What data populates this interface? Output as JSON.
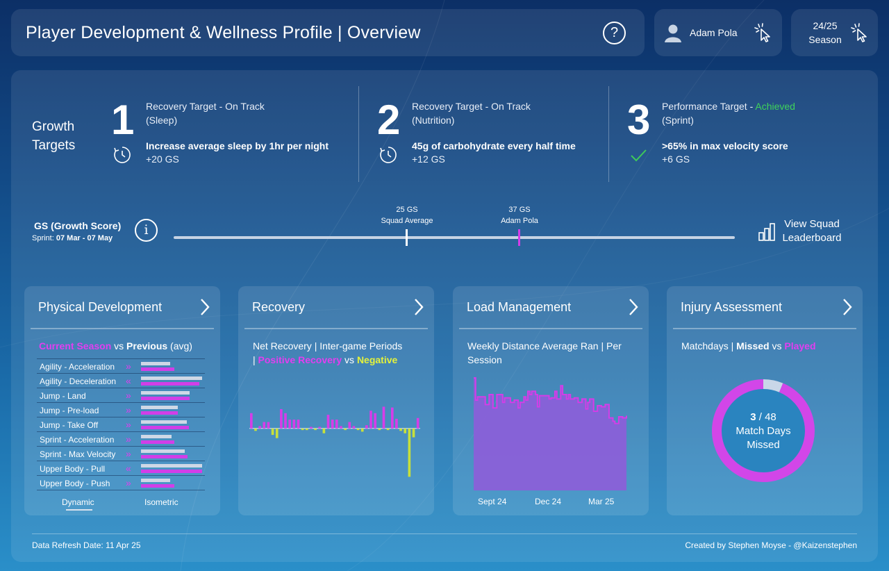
{
  "header": {
    "title": "Player Development & Wellness Profile | Overview",
    "help_icon": "?",
    "user_name": "Adam Pola",
    "season_line1": "24/25",
    "season_line2": "Season"
  },
  "growth": {
    "label_line1": "Growth",
    "label_line2": "Targets",
    "targets": [
      {
        "number": "1",
        "title": "Recovery Target - On Track",
        "status": "",
        "subtitle": "(Sleep)",
        "description": "Increase average sleep by 1hr per night",
        "score": "+20 GS",
        "icon": "clock-icon"
      },
      {
        "number": "2",
        "title": "Recovery Target - On Track",
        "status": "",
        "subtitle": "(Nutrition)",
        "description": "45g of carbohydrate every half time",
        "score": "+12 GS",
        "icon": "clock-icon"
      },
      {
        "number": "3",
        "title": "Performance Target - ",
        "status": "Achieved",
        "subtitle": "(Sprint)",
        "description": ">65% in max velocity score",
        "score": "+6 GS",
        "icon": "check-icon"
      }
    ]
  },
  "gs_bar": {
    "title": "GS (Growth Score)",
    "sprint_label": "Sprint: ",
    "sprint_dates": "07 Mar - 07 May",
    "squad_value": "25 GS",
    "squad_label": "Squad Average",
    "player_value": "37 GS",
    "player_label": "Adam Pola",
    "leaderboard_line1": "View Squad",
    "leaderboard_line2": "Leaderboard"
  },
  "cards": {
    "physical": {
      "title": "Physical Development",
      "legend_current": "Current Season",
      "legend_vs": " vs ",
      "legend_previous": "Previous",
      "legend_avg": " (avg)",
      "rows": [
        {
          "label": "Agility - Acceleration",
          "arrow": "»",
          "previous": 0.48,
          "current": 0.55
        },
        {
          "label": "Agility - Deceleration",
          "arrow": "«",
          "previous": 1.0,
          "current": 0.95
        },
        {
          "label": "Jump - Land",
          "arrow": "»",
          "previous": 0.79,
          "current": 0.79
        },
        {
          "label": "Jump - Pre-load",
          "arrow": "»",
          "previous": 0.6,
          "current": 0.6
        },
        {
          "label": "Jump - Take Off",
          "arrow": "»",
          "previous": 0.75,
          "current": 0.78
        },
        {
          "label": "Sprint - Acceleration",
          "arrow": "»",
          "previous": 0.5,
          "current": 0.55
        },
        {
          "label": "Sprint - Max Velocity",
          "arrow": "»",
          "previous": 0.72,
          "current": 0.76
        },
        {
          "label": "Upper Body - Pull",
          "arrow": "«",
          "previous": 1.0,
          "current": 1.0
        },
        {
          "label": "Upper Body - Push",
          "arrow": "»",
          "previous": 0.48,
          "current": 0.55
        }
      ],
      "tabs": [
        "Dynamic",
        "Isometric"
      ]
    },
    "recovery": {
      "title": "Recovery",
      "subtitle_line1": "Net Recovery | Inter-game Periods",
      "subtitle_pipe": "| ",
      "positive": "Positive Recovery",
      "vs": " vs ",
      "negative": "Negative",
      "chart_data": {
        "type": "bar",
        "values": [
          0.19,
          -0.03,
          0.03,
          0.08,
          0.08,
          -0.08,
          -0.12,
          0.24,
          0.19,
          0.11,
          0.11,
          0.11,
          -0.02,
          -0.02,
          0.02,
          -0.02,
          0.02,
          -0.06,
          0.17,
          0.11,
          0.11,
          0.03,
          -0.02,
          0.08,
          0.03,
          -0.02,
          -0.04,
          0.04,
          0.22,
          0.19,
          -0.02,
          0.27,
          -0.02,
          0.26,
          0.12,
          -0.03,
          -0.06,
          -0.6,
          -0.11,
          0.13
        ],
        "ylim": [
          -0.7,
          0.3
        ]
      },
      "colors": {
        "positive": "#d63de8",
        "negative": "#c8e03a"
      }
    },
    "load": {
      "title": "Load Management",
      "subtitle": "Weekly Distance Average Ran | Per Session",
      "x_ticks": [
        "Sept 24",
        "Dec 24",
        "Mar 25"
      ],
      "chart_data": {
        "type": "area",
        "values": [
          100,
          80,
          83,
          83,
          83,
          83,
          76,
          76,
          85,
          85,
          73,
          73,
          85,
          85,
          85,
          78,
          82,
          82,
          82,
          78,
          78,
          80,
          80,
          73,
          78,
          78,
          83,
          80,
          88,
          85,
          88,
          88,
          85,
          74,
          84,
          84,
          84,
          84,
          84,
          81,
          82,
          82,
          88,
          81,
          81,
          93,
          85,
          85,
          81,
          85,
          81,
          81,
          82,
          82,
          78,
          78,
          81,
          81,
          72,
          78,
          81,
          81,
          70,
          70,
          75,
          75,
          74,
          74,
          76,
          76,
          64,
          64,
          61,
          59,
          59,
          65,
          65,
          64,
          64,
          66
        ],
        "ylim": [
          0,
          100
        ]
      },
      "colors": {
        "line": "#d43de8",
        "fill": "#8a60d8"
      }
    },
    "injury": {
      "title": "Injury Assessment",
      "subtitle_prefix": "Matchdays | ",
      "missed": "Missed",
      "vs": " vs ",
      "played": "Played",
      "missed_count": "3",
      "separator": "/",
      "total": "48",
      "center_line2": "Match Days",
      "center_line3": "Missed",
      "chart_data": {
        "type": "pie",
        "categories": [
          "Missed",
          "Played"
        ],
        "values": [
          3,
          45
        ]
      },
      "colors": {
        "missed": "#c9d7e8",
        "played": "#d246e8"
      }
    }
  },
  "footer": {
    "refresh": "Data Refresh Date: 11 Apr 25",
    "credit": "Created by Stephen Moyse - @Kaizenstephen"
  }
}
